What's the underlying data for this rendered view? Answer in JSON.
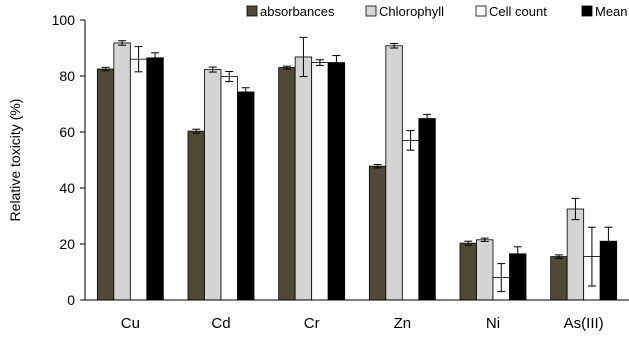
{
  "chart_data": {
    "type": "bar",
    "title": "",
    "xlabel": "",
    "ylabel": "Relative toxicity (%)",
    "ylim": [
      0,
      100
    ],
    "yticks": [
      0,
      20,
      40,
      60,
      80,
      100
    ],
    "grid": false,
    "legend_position": "top",
    "categories": [
      "Cu",
      "Cd",
      "Cr",
      "Zn",
      "Ni",
      "As(III)"
    ],
    "series": [
      {
        "name": "absorbances",
        "color": "#4f4a37",
        "values": [
          82.5,
          60.3,
          83.0,
          47.8,
          20.3,
          15.5
        ],
        "errors": [
          0.6,
          0.7,
          0.5,
          0.6,
          0.7,
          0.6
        ]
      },
      {
        "name": "Chlorophyll",
        "color": "#d4d4d4",
        "values": [
          91.8,
          82.3,
          86.8,
          90.8,
          21.5,
          32.5
        ],
        "errors": [
          0.8,
          0.9,
          7.0,
          0.8,
          0.6,
          3.8
        ]
      },
      {
        "name": "Cell count",
        "color": "#ffffff",
        "values": [
          86.0,
          79.8,
          84.8,
          57.0,
          8.0,
          15.5
        ],
        "errors": [
          4.5,
          1.8,
          1.0,
          3.5,
          5.0,
          10.5
        ]
      },
      {
        "name": "Mean",
        "color": "#000000",
        "values": [
          86.5,
          74.3,
          84.8,
          64.8,
          16.5,
          21.0
        ],
        "errors": [
          1.8,
          1.5,
          2.5,
          1.5,
          2.5,
          5.0
        ]
      }
    ]
  }
}
